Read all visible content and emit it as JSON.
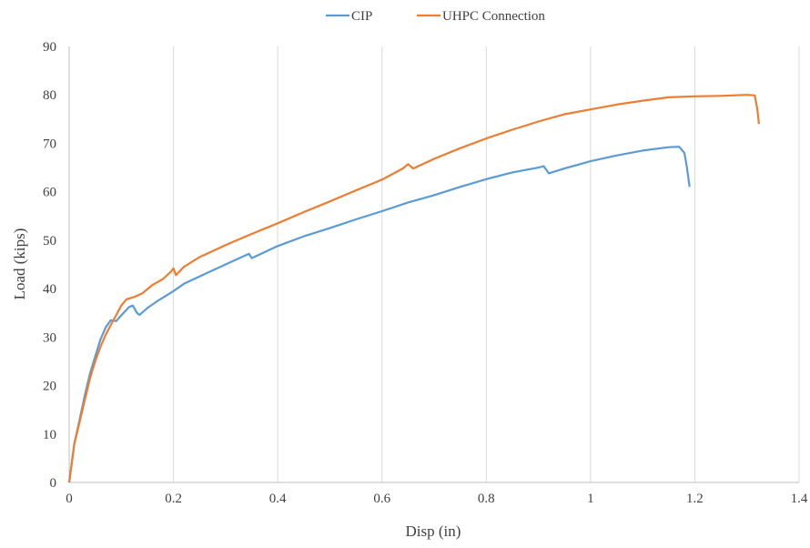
{
  "chart_data": {
    "type": "line",
    "title": "",
    "xlabel": "Disp (in)",
    "ylabel": "Load (kips)",
    "xlim": [
      0,
      1.4
    ],
    "ylim": [
      0,
      90
    ],
    "xticks": [
      "0",
      "0.2",
      "0.4",
      "0.6",
      "0.8",
      "1",
      "1.2",
      "1.4"
    ],
    "yticks": [
      "0",
      "10",
      "20",
      "30",
      "40",
      "50",
      "60",
      "70",
      "80",
      "90"
    ],
    "grid": "vertical",
    "legend": "top-center",
    "series": [
      {
        "name": "CIP",
        "color": "#5B9BD5",
        "points": [
          [
            0,
            0
          ],
          [
            0.01,
            8
          ],
          [
            0.02,
            13
          ],
          [
            0.03,
            18
          ],
          [
            0.04,
            22.5
          ],
          [
            0.05,
            26
          ],
          [
            0.06,
            29.5
          ],
          [
            0.07,
            32
          ],
          [
            0.08,
            33.5
          ],
          [
            0.09,
            33.3
          ],
          [
            0.1,
            34.5
          ],
          [
            0.115,
            36.2
          ],
          [
            0.122,
            36.5
          ],
          [
            0.13,
            35
          ],
          [
            0.135,
            34.6
          ],
          [
            0.15,
            36
          ],
          [
            0.17,
            37.5
          ],
          [
            0.2,
            39.5
          ],
          [
            0.22,
            41
          ],
          [
            0.25,
            42.5
          ],
          [
            0.28,
            44
          ],
          [
            0.3,
            45
          ],
          [
            0.32,
            46
          ],
          [
            0.345,
            47.2
          ],
          [
            0.35,
            46.3
          ],
          [
            0.37,
            47.3
          ],
          [
            0.4,
            48.8
          ],
          [
            0.45,
            50.8
          ],
          [
            0.5,
            52.5
          ],
          [
            0.55,
            54.3
          ],
          [
            0.6,
            56
          ],
          [
            0.65,
            57.8
          ],
          [
            0.7,
            59.3
          ],
          [
            0.75,
            61
          ],
          [
            0.8,
            62.6
          ],
          [
            0.85,
            64
          ],
          [
            0.9,
            65
          ],
          [
            0.91,
            65.3
          ],
          [
            0.92,
            63.8
          ],
          [
            0.95,
            64.8
          ],
          [
            1.0,
            66.3
          ],
          [
            1.05,
            67.5
          ],
          [
            1.1,
            68.5
          ],
          [
            1.15,
            69.2
          ],
          [
            1.17,
            69.3
          ],
          [
            1.18,
            68
          ],
          [
            1.185,
            65
          ],
          [
            1.19,
            61
          ]
        ]
      },
      {
        "name": "UHPC Connection",
        "color": "#ED7D31",
        "points": [
          [
            0,
            0
          ],
          [
            0.01,
            8
          ],
          [
            0.02,
            12.5
          ],
          [
            0.03,
            17
          ],
          [
            0.04,
            21.5
          ],
          [
            0.05,
            25
          ],
          [
            0.06,
            28
          ],
          [
            0.07,
            30.5
          ],
          [
            0.08,
            32.5
          ],
          [
            0.09,
            34.5
          ],
          [
            0.1,
            36.5
          ],
          [
            0.11,
            37.8
          ],
          [
            0.125,
            38.3
          ],
          [
            0.14,
            39
          ],
          [
            0.16,
            40.8
          ],
          [
            0.18,
            42
          ],
          [
            0.195,
            43.5
          ],
          [
            0.2,
            44.2
          ],
          [
            0.205,
            42.8
          ],
          [
            0.22,
            44.5
          ],
          [
            0.25,
            46.5
          ],
          [
            0.3,
            49
          ],
          [
            0.35,
            51.3
          ],
          [
            0.4,
            53.5
          ],
          [
            0.45,
            55.8
          ],
          [
            0.5,
            58
          ],
          [
            0.55,
            60.3
          ],
          [
            0.6,
            62.5
          ],
          [
            0.64,
            64.8
          ],
          [
            0.65,
            65.7
          ],
          [
            0.66,
            64.8
          ],
          [
            0.7,
            66.8
          ],
          [
            0.75,
            69
          ],
          [
            0.8,
            71
          ],
          [
            0.85,
            72.8
          ],
          [
            0.9,
            74.5
          ],
          [
            0.95,
            76
          ],
          [
            1.0,
            77
          ],
          [
            1.05,
            78
          ],
          [
            1.1,
            78.8
          ],
          [
            1.15,
            79.5
          ],
          [
            1.2,
            79.7
          ],
          [
            1.25,
            79.8
          ],
          [
            1.3,
            80
          ],
          [
            1.315,
            79.9
          ],
          [
            1.32,
            77
          ],
          [
            1.323,
            74
          ]
        ]
      }
    ]
  }
}
